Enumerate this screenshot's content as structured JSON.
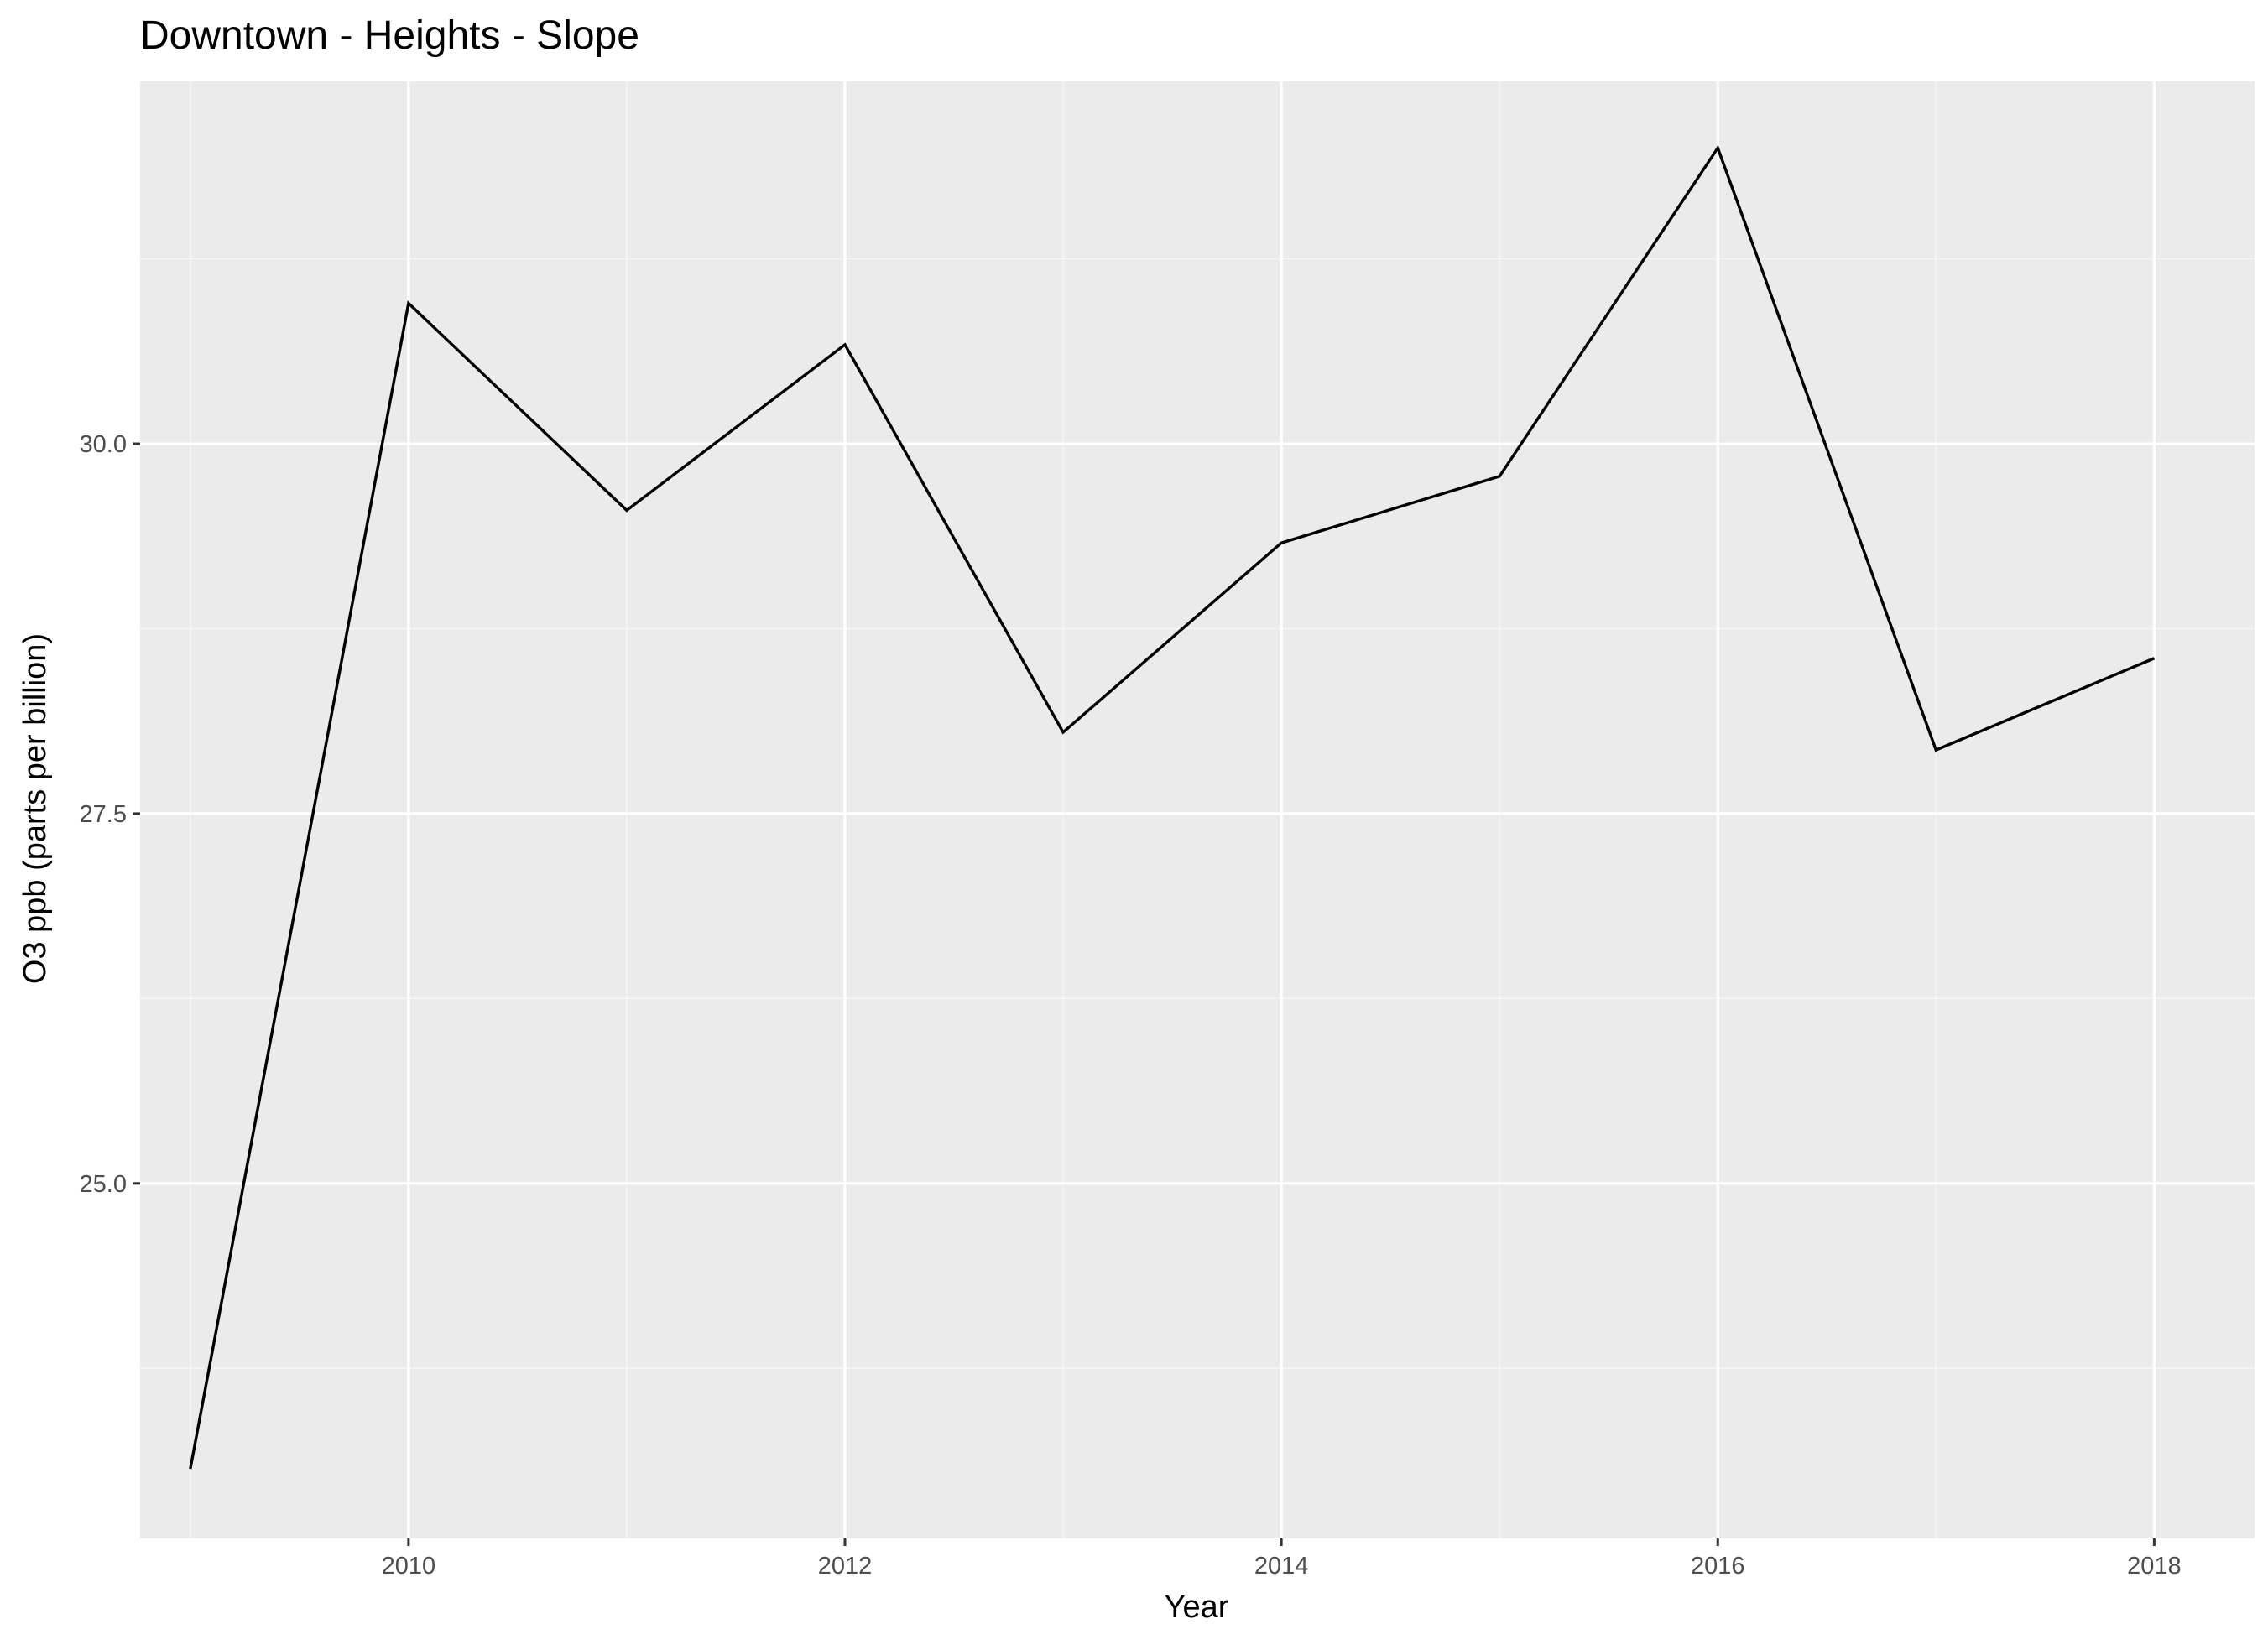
{
  "chart_data": {
    "type": "line",
    "title": "Downtown - Heights - Slope",
    "xlabel": "Year",
    "ylabel": "O3 ppb (parts per billion)",
    "x": [
      2009,
      2010,
      2011,
      2012,
      2013,
      2014,
      2015,
      2016,
      2017,
      2018
    ],
    "series": [
      {
        "values": [
          23.07,
          30.95,
          29.55,
          30.67,
          28.05,
          29.33,
          29.78,
          32.0,
          27.93,
          28.55
        ]
      }
    ],
    "xlim": [
      2008.77,
      2018.46
    ],
    "ylim": [
      22.6,
      32.45
    ],
    "x_ticks": [
      2010,
      2012,
      2014,
      2016,
      2018
    ],
    "x_tick_labels": [
      "2010",
      "2012",
      "2014",
      "2016",
      "2018"
    ],
    "y_ticks": [
      25.0,
      27.5,
      30.0
    ],
    "y_tick_labels": [
      "25.0",
      "27.5",
      "30.0"
    ],
    "grid": true,
    "legend": "none",
    "colors": {
      "panel_background": "#ebebeb",
      "grid_major": "#ffffff",
      "grid_minor": "#f5f5f5",
      "line": "#000000",
      "tick_label": "#4d4d4d",
      "tick_mark": "#333333"
    }
  }
}
